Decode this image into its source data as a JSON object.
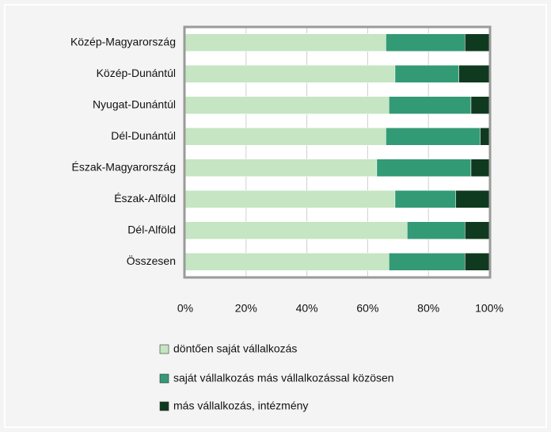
{
  "chart_data": {
    "type": "stacked_bar_horizontal",
    "categories": [
      "Közép-Magyarország",
      "Közép-Dunántúl",
      "Nyugat-Dunántúl",
      "Dél-Dunántúl",
      "Észak-Magyarország",
      "Észak-Alföld",
      "Dél-Alföld",
      "Összesen"
    ],
    "series": [
      {
        "name": "döntően saját vállalkozás",
        "color": "#c5e5c3",
        "values": [
          66,
          69,
          67,
          66,
          63,
          69,
          73,
          67
        ]
      },
      {
        "name": "saját vállalkozás más vállalkozással közösen",
        "color": "#339a76",
        "values": [
          26,
          21,
          27,
          31,
          31,
          20,
          19,
          25
        ]
      },
      {
        "name": "más vállalkozás, intézmény",
        "color": "#0f3a20",
        "values": [
          8,
          10,
          6,
          3,
          6,
          11,
          8,
          8
        ]
      }
    ],
    "xlim": [
      0,
      100
    ],
    "xticks": [
      {
        "value": 0,
        "label": "0%"
      },
      {
        "value": 20,
        "label": "20%"
      },
      {
        "value": 40,
        "label": "40%"
      },
      {
        "value": 60,
        "label": "60%"
      },
      {
        "value": 80,
        "label": "80%"
      },
      {
        "value": 100,
        "label": "100%"
      }
    ],
    "grid": true,
    "legend": "bottom"
  }
}
